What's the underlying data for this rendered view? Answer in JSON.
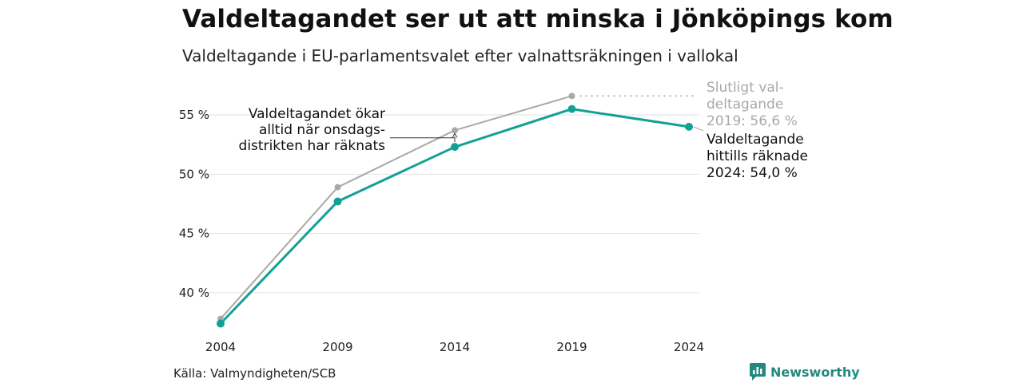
{
  "title": "Valdeltagandet ser ut att minska i Jönköpings kom",
  "subtitle": "Valdeltagande i EU-parlamentsvalet efter valnattsräkningen i vallokal",
  "source": "Källa: Valmyndigheten/SCB",
  "brand": {
    "name": "Newsworthy",
    "icon": "newsworthy-logo-icon",
    "color": "#22897e"
  },
  "annotations": {
    "note_lines": [
      "Valdeltagandet ökar",
      "alltid när onsdags-",
      "distrikten har räknats"
    ],
    "final_lines": [
      "Slutligt val-",
      "deltagande",
      "2019: 56,6 %"
    ],
    "current_lines": [
      "Valdeltagande",
      "hittills räknade",
      "2024: 54,0 %"
    ]
  },
  "chart_data": {
    "type": "line",
    "x": [
      2004,
      2009,
      2014,
      2019,
      2024
    ],
    "x_tick_labels": [
      "2004",
      "2009",
      "2014",
      "2019",
      "2024"
    ],
    "y_ticks": [
      40,
      45,
      50,
      55
    ],
    "y_tick_labels": [
      "40 %",
      "45 %",
      "50 %",
      "55 %"
    ],
    "ylim": [
      37.1,
      58.3
    ],
    "grid": true,
    "series": [
      {
        "key": "final",
        "color": "#a9a9a9",
        "x": [
          2004,
          2009,
          2014,
          2019
        ],
        "values": [
          37.8,
          48.9,
          53.7,
          56.6
        ]
      },
      {
        "key": "counted",
        "color": "#13a195",
        "x": [
          2004,
          2009,
          2014,
          2019,
          2024
        ],
        "values": [
          37.4,
          47.7,
          52.3,
          55.5,
          54.0
        ]
      }
    ]
  }
}
